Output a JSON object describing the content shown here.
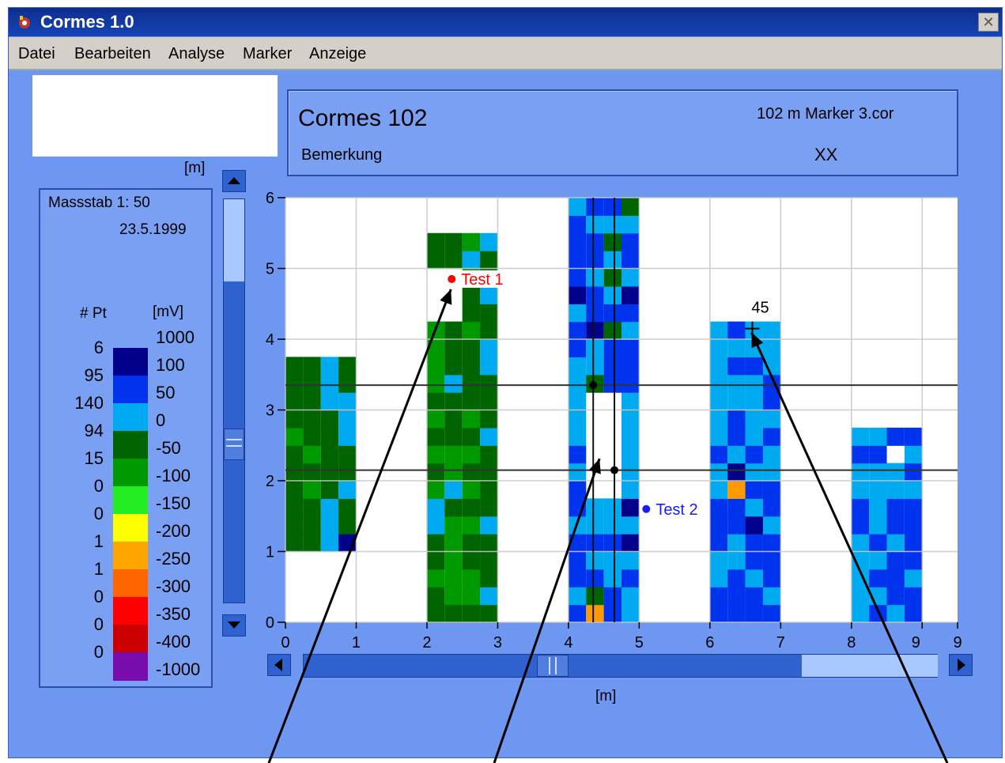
{
  "window": {
    "title": "Cormes 1.0",
    "close_label": "✕"
  },
  "menu": [
    "Datei",
    "Bearbeiten",
    "Analyse",
    "Marker",
    "Anzeige"
  ],
  "info": {
    "name": "Cormes 102",
    "file": "102 m Marker 3.cor",
    "remark_label": "Bemerkung",
    "remark_value": "XX"
  },
  "unit_label": "[m]",
  "legend": {
    "scale": "Massstab 1: 50",
    "date": "23.5.1999",
    "count_header": "# Pt",
    "value_header": "[mV]",
    "entries": [
      {
        "count": "6",
        "value": "1000",
        "color": "#00008b"
      },
      {
        "count": "95",
        "value": "100",
        "color": "#0033ee"
      },
      {
        "count": "140",
        "value": "50",
        "color": "#00aaf0"
      },
      {
        "count": "94",
        "value": "0",
        "color": "#006400"
      },
      {
        "count": "15",
        "value": "-50",
        "color": "#009900"
      },
      {
        "count": "0",
        "value": "-100",
        "color": "#22ee22"
      },
      {
        "count": "0",
        "value": "-150",
        "color": "#ffff00"
      },
      {
        "count": "1",
        "value": "-200",
        "color": "#ffa500"
      },
      {
        "count": "1",
        "value": "-250",
        "color": "#ff6600"
      },
      {
        "count": "0",
        "value": "-300",
        "color": "#ff0000"
      },
      {
        "count": "0",
        "value": "-350",
        "color": "#cc0000"
      },
      {
        "count": "0",
        "value": "-400",
        "color": "#7a0dad"
      }
    ],
    "bottom_value": "-1000"
  },
  "plot": {
    "x_ticks": [
      "0",
      "1",
      "2",
      "3",
      "4",
      "5",
      "6",
      "7",
      "8",
      "9",
      "9"
    ],
    "y_ticks": [
      "0",
      "1",
      "2",
      "3",
      "4",
      "5",
      "6"
    ],
    "x_unit": "[m]",
    "markers": [
      {
        "label": "Test 1",
        "color": "#ff0000",
        "x": 2.35,
        "y": 4.85
      },
      {
        "label": "Test 2",
        "color": "#1a1aff",
        "x": 5.1,
        "y": 1.6
      }
    ],
    "cross_label": "45",
    "cross": {
      "x": 6.6,
      "y": 4.15
    },
    "selection_lines_y": [
      3.35,
      2.15
    ],
    "profile_lines_x": [
      4.35,
      4.65
    ]
  }
}
